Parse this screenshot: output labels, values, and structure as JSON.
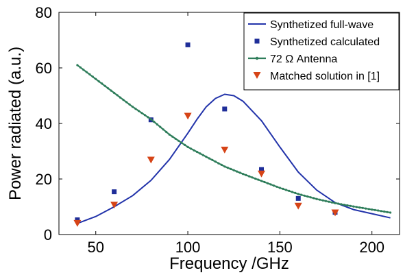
{
  "chart_data": {
    "type": "line",
    "xlabel": "Frequency /GHz",
    "ylabel": "Power radiated (a.u.)",
    "xlim": [
      30,
      215
    ],
    "ylim": [
      0,
      80
    ],
    "xticks": [
      50,
      100,
      150,
      200
    ],
    "yticks": [
      0,
      20,
      40,
      60,
      80
    ],
    "legend_position": "top-right",
    "grid": false,
    "series": [
      {
        "name": "Synthetized full-wave",
        "kind": "line",
        "color": "#2233aa",
        "x": [
          40,
          50,
          60,
          70,
          80,
          90,
          100,
          105,
          110,
          115,
          120,
          125,
          130,
          140,
          150,
          160,
          170,
          180,
          190,
          200,
          210
        ],
        "y": [
          4,
          6.5,
          10,
          14,
          19.5,
          27,
          36.5,
          41.5,
          46,
          49,
          50.5,
          50,
          48,
          41,
          31.5,
          22.5,
          16,
          11.5,
          9,
          7.5,
          6
        ]
      },
      {
        "name": "Synthetized calculated",
        "kind": "marker",
        "marker": "square",
        "color": "#1f2e99",
        "x": [
          40,
          60,
          80,
          100,
          120,
          140,
          160,
          180
        ],
        "y": [
          5.3,
          15.4,
          41.3,
          68.3,
          45.2,
          23.4,
          13.0,
          8.0
        ]
      },
      {
        "name": "72 Ω Antenna",
        "kind": "line-marker",
        "color": "#2e7d5a",
        "x": [
          40,
          50,
          60,
          70,
          80,
          90,
          100,
          110,
          120,
          130,
          140,
          150,
          160,
          170,
          180,
          190,
          200,
          210
        ],
        "y": [
          61,
          56,
          51,
          46,
          41.5,
          36,
          31.5,
          28,
          24.5,
          21.8,
          19.3,
          16.8,
          14.6,
          12.8,
          11.3,
          10.1,
          9,
          7.9
        ]
      },
      {
        "name": "Matched solution in [1]",
        "kind": "marker",
        "marker": "triangle-down",
        "color": "#d64417",
        "x": [
          40,
          60,
          80,
          100,
          120,
          140,
          160,
          180
        ],
        "y": [
          4.0,
          10.6,
          26.8,
          42.6,
          30.4,
          21.8,
          10.2,
          7.8
        ]
      }
    ]
  }
}
